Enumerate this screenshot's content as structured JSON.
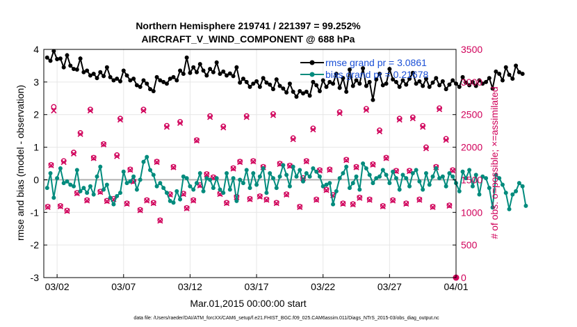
{
  "chart_data": {
    "type": "line",
    "title_line1": "Northern Hemisphere 219741 / 221397 = 99.252%",
    "title_line2": "AIRCRAFT_V_WIND_COMPONENT @ 688 hPa",
    "ylabel_left": "rmse and bias (model - observation)",
    "ylabel_right": "# of obs: o=possible; ×=assimilated",
    "xlabel": "Mar.01,2015 00:00:00 start",
    "footer": "data file: /Users/raeder/DAI/ATM_forcXX/CAM6_setup/f.e21.FHIST_BGC.f09_025.CAM6assim.011/Diags_NTrS_2015-03/obs_diag_output.nc",
    "x_tick_labels": [
      "03/02",
      "03/07",
      "03/12",
      "03/17",
      "03/22",
      "03/27",
      "04/01"
    ],
    "x_tick_days": [
      1,
      6,
      11,
      16,
      21,
      26,
      31
    ],
    "xlim": [
      0,
      31
    ],
    "ylim_left": [
      -3,
      4
    ],
    "ylim_right": [
      0,
      3500
    ],
    "y_ticks_left": [
      "-3",
      "-2",
      "-1",
      "0",
      "1",
      "2",
      "3",
      "4"
    ],
    "y_ticks_right": [
      "0",
      "500",
      "1000",
      "1500",
      "2000",
      "2500",
      "3000",
      "3500"
    ],
    "grid": true,
    "legend_position": "top-right",
    "colors": {
      "rmse": "#000000",
      "bias": "#008b7d",
      "obs": "#d0005a",
      "legend_text": "#1a4fd6",
      "zero_line": "#b0b0b0"
    },
    "series": [
      {
        "name": "rmse grand pr = 3.0861",
        "axis": "left",
        "x_start_day": 0.25,
        "x_step_days": 0.25,
        "values": [
          3.75,
          3.65,
          3.95,
          3.7,
          3.72,
          3.45,
          3.82,
          3.5,
          3.4,
          3.38,
          3.72,
          3.3,
          3.35,
          3.2,
          3.25,
          3.12,
          3.3,
          3.18,
          3.45,
          3.15,
          3.05,
          3.1,
          3.02,
          3.35,
          3.2,
          3.05,
          3.1,
          2.9,
          2.85,
          3.05,
          2.95,
          2.78,
          2.72,
          3.15,
          3.05,
          3.0,
          2.95,
          3.1,
          3.15,
          3.05,
          3.35,
          3.25,
          3.75,
          3.28,
          3.45,
          3.3,
          3.55,
          3.35,
          3.2,
          3.4,
          3.3,
          3.6,
          3.25,
          3.32,
          3.2,
          3.26,
          3.18,
          3.45,
          2.98,
          3.1,
          3.0,
          2.85,
          2.95,
          3.02,
          2.85,
          3.12,
          2.98,
          2.92,
          2.78,
          3.08,
          2.88,
          2.8,
          2.68,
          2.95,
          2.7,
          2.55,
          2.72,
          2.65,
          2.7,
          2.58,
          3.0,
          2.9,
          2.72,
          3.05,
          2.85,
          3.0,
          2.95,
          3.25,
          2.82,
          3.12,
          2.7,
          3.38,
          2.88,
          3.05,
          2.95,
          3.42,
          2.88,
          3.0,
          2.45,
          3.08,
          3.25,
          2.9,
          2.95,
          3.4,
          3.08,
          3.0,
          2.85,
          3.05,
          2.92,
          3.1,
          3.28,
          2.95,
          3.02,
          2.88,
          3.1,
          2.85,
          2.98,
          3.12,
          2.9,
          3.02,
          2.78,
          2.92,
          3.05,
          2.95,
          2.85,
          3.15,
          2.98,
          2.9,
          3.0,
          2.88,
          3.05,
          2.95,
          3.0,
          3.12,
          2.8,
          3.32,
          3.25,
          3.05,
          3.45,
          3.22,
          3.1,
          3.5,
          3.3,
          3.25
        ]
      },
      {
        "name": "bias grand pr = 0.21678",
        "axis": "left",
        "x_start_day": 0.25,
        "x_step_days": 0.25,
        "values": [
          -0.25,
          0.2,
          -0.55,
          0.05,
          0.35,
          -0.1,
          -0.05,
          -0.15,
          -0.2,
          0.3,
          -0.35,
          -0.25,
          -0.4,
          -0.2,
          -0.45,
          0.1,
          0.4,
          -0.3,
          -0.15,
          -0.55,
          -0.75,
          -0.5,
          -0.4,
          0.25,
          -0.1,
          -0.05,
          0.1,
          -0.3,
          0.0,
          0.55,
          0.7,
          0.3,
          0.15,
          -0.2,
          -0.1,
          -0.25,
          -0.4,
          -0.65,
          -0.7,
          -0.35,
          -0.6,
          0.1,
          0.05,
          -0.2,
          -0.3,
          -0.1,
          0.2,
          -0.35,
          0.05,
          0.0,
          -0.25,
          0.05,
          -0.3,
          -0.4,
          0.2,
          -0.3,
          0.05,
          -0.65,
          0.0,
          -0.1,
          0.3,
          -0.25,
          0.2,
          -0.15,
          0.1,
          0.35,
          -0.4,
          0.2,
          0.05,
          -0.25,
          0.1,
          0.45,
          0.15,
          -0.2,
          0.4,
          0.1,
          0.3,
          -0.05,
          0.2,
          0.1,
          0.35,
          0.25,
          0.1,
          -0.2,
          -0.15,
          -0.1,
          -0.75,
          -0.35,
          0.05,
          0.2,
          0.4,
          -0.25,
          -0.1,
          0.1,
          -0.3,
          0.5,
          0.35,
          0.15,
          -0.1,
          0.05,
          0.1,
          0.3,
          0.15,
          -0.1,
          0.25,
          0.05,
          -0.3,
          0.15,
          0.05,
          -0.2,
          0.2,
          0.3,
          -0.05,
          -0.3,
          0.2,
          -0.15,
          0.1,
          0.35,
          0.05,
          0.1,
          -0.2,
          0.2,
          0.1,
          -0.1,
          -0.35,
          0.25,
          0.05,
          0.3,
          -0.2,
          0.15,
          -0.45,
          0.1,
          0.05,
          -0.25,
          -0.85,
          0.15,
          0.05,
          -0.15,
          -0.4,
          -0.9,
          -0.45,
          -0.35,
          -0.1,
          -0.2,
          -0.8
        ]
      },
      {
        "name": "obs possible",
        "axis": "right",
        "marker": "circle",
        "x_days": [
          0.3,
          0.55,
          0.75,
          1.25,
          1.5,
          1.75,
          2.25,
          2.5,
          2.75,
          3.25,
          3.5,
          3.75,
          4.25,
          4.5,
          4.75,
          5.25,
          5.5,
          5.75,
          6.25,
          6.5,
          6.75,
          7.25,
          7.5,
          7.75,
          8.25,
          8.5,
          8.75,
          9.25,
          9.5,
          9.75,
          10.25,
          10.5,
          10.75,
          11.25,
          11.5,
          11.75,
          12.25,
          12.5,
          12.75,
          13.25,
          13.5,
          13.75,
          14.25,
          14.5,
          14.75,
          15.25,
          15.5,
          15.75,
          16.25,
          16.5,
          16.75,
          17.25,
          17.5,
          17.75,
          18.25,
          18.5,
          18.75,
          19.25,
          19.5,
          19.75,
          20.25,
          20.5,
          20.75,
          21.25,
          21.5,
          21.75,
          22.25,
          22.5,
          22.75,
          23.25,
          23.5,
          23.75,
          24.25,
          24.5,
          24.75,
          25.25,
          25.5,
          25.75,
          26.25,
          26.5,
          26.75,
          27.25,
          27.5,
          27.75,
          28.25,
          28.5,
          28.75,
          29.25,
          29.5,
          29.75,
          30.25,
          30.5,
          30.75
        ],
        "values": [
          1090,
          1730,
          2620,
          1100,
          1790,
          1030,
          1920,
          1300,
          2220,
          1190,
          2580,
          1840,
          1320,
          2050,
          1180,
          1210,
          1880,
          2440,
          1140,
          1660,
          1480,
          1040,
          2580,
          1190,
          1150,
          1780,
          880,
          2330,
          1280,
          1700,
          2390,
          1290,
          1070,
          1190,
          2110,
          1420,
          1590,
          2480,
          1540,
          1290,
          2320,
          1150,
          1680,
          1240,
          1780,
          2480,
          1210,
          1790,
          1250,
          1700,
          1200,
          2510,
          1150,
          1750,
          1280,
          1720,
          2140,
          1090,
          1530,
          1790,
          2290,
          1200,
          1650,
          1350,
          1660,
          1270,
          2540,
          1140,
          1810,
          1130,
          1700,
          1230,
          2590,
          1200,
          1740,
          2260,
          1100,
          1840,
          1190,
          1640,
          2440,
          1140,
          1640,
          2460,
          1200,
          2330,
          2000,
          1090,
          1700,
          2600,
          2130,
          1110,
          1650
        ]
      },
      {
        "name": "obs assimilated",
        "axis": "right",
        "marker": "x",
        "x_days": [
          0.3,
          0.55,
          0.75,
          1.25,
          1.5,
          1.75,
          2.25,
          2.5,
          2.75,
          3.25,
          3.5,
          3.75,
          4.25,
          4.5,
          4.75,
          5.25,
          5.5,
          5.75,
          6.25,
          6.5,
          6.75,
          7.25,
          7.5,
          7.75,
          8.25,
          8.5,
          8.75,
          9.25,
          9.5,
          9.75,
          10.25,
          10.5,
          10.75,
          11.25,
          11.5,
          11.75,
          12.25,
          12.5,
          12.75,
          13.25,
          13.5,
          13.75,
          14.25,
          14.5,
          14.75,
          15.25,
          15.5,
          15.75,
          16.25,
          16.5,
          16.75,
          17.25,
          17.5,
          17.75,
          18.25,
          18.5,
          18.75,
          19.25,
          19.5,
          19.75,
          20.25,
          20.5,
          20.75,
          21.25,
          21.5,
          21.75,
          22.25,
          22.5,
          22.75,
          23.25,
          23.5,
          23.75,
          24.25,
          24.5,
          24.75,
          25.25,
          25.5,
          25.75,
          26.25,
          26.5,
          26.75,
          27.25,
          27.5,
          27.75,
          28.25,
          28.5,
          28.75,
          29.25,
          29.5,
          29.75,
          30.25,
          30.5,
          30.75
        ],
        "values": [
          1080,
          1720,
          2560,
          1090,
          1770,
          1020,
          1900,
          1290,
          2200,
          1180,
          2560,
          1830,
          1310,
          2040,
          1170,
          1200,
          1860,
          2420,
          1130,
          1650,
          1470,
          1030,
          2560,
          1180,
          1140,
          1770,
          870,
          2310,
          1270,
          1690,
          2370,
          1280,
          1060,
          1180,
          2100,
          1410,
          1580,
          2460,
          1530,
          1280,
          2300,
          1140,
          1670,
          1230,
          1770,
          2460,
          1200,
          1780,
          1240,
          1690,
          1190,
          2490,
          1140,
          1740,
          1270,
          1710,
          2120,
          1080,
          1520,
          1780,
          2270,
          1190,
          1640,
          1340,
          1650,
          1260,
          2520,
          1130,
          1800,
          1120,
          1690,
          1220,
          2570,
          1190,
          1730,
          2240,
          1090,
          1830,
          1180,
          1630,
          2420,
          1130,
          1630,
          2440,
          1190,
          2310,
          1980,
          1080,
          1690,
          2580,
          2110,
          1100,
          1640
        ]
      }
    ]
  }
}
